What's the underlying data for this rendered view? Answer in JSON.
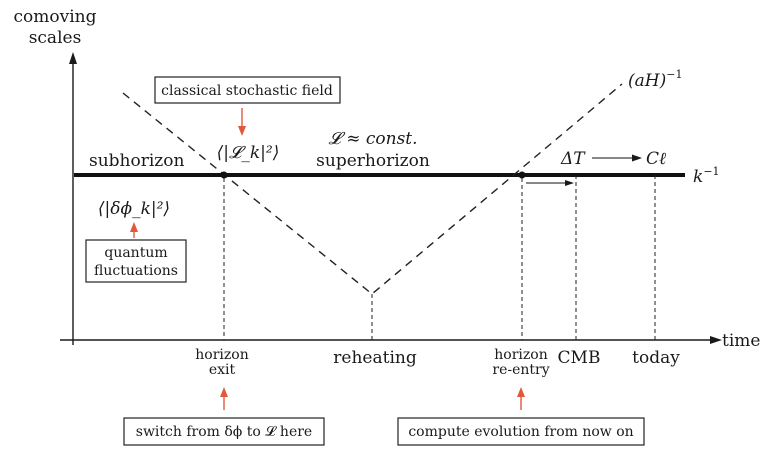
{
  "labels": {
    "y_axis_line1": "comoving",
    "y_axis_line2": "scales",
    "x_axis": "time",
    "subhorizon": "subhorizon",
    "superhorizon": "superhorizon",
    "r_const": "𝓛 ≈ const.",
    "ah_inverse": "(aH)",
    "ah_exp": "−1",
    "k_inverse": "k",
    "k_exp": "−1",
    "delta_t": "ΔT",
    "c_ell": "Cℓ",
    "rk_power": "⟨|𝓛_k|²⟩",
    "dphi_power": "⟨|δϕ_k|²⟩",
    "tick_horizon_exit_1": "horizon",
    "tick_horizon_exit_2": "exit",
    "tick_reheating": "reheating",
    "tick_reentry_1": "horizon",
    "tick_reentry_2": "re-entry",
    "tick_cmb": "CMB",
    "tick_today": "today"
  },
  "boxes": {
    "classical": "classical stochastic field",
    "quantum_1": "quantum",
    "quantum_2": "fluctuations",
    "switch": "switch from δϕ to 𝓛 here",
    "compute": "compute evolution from now on"
  },
  "colors": {
    "annotation_arrow": "#e2583e",
    "line": "#111111"
  }
}
